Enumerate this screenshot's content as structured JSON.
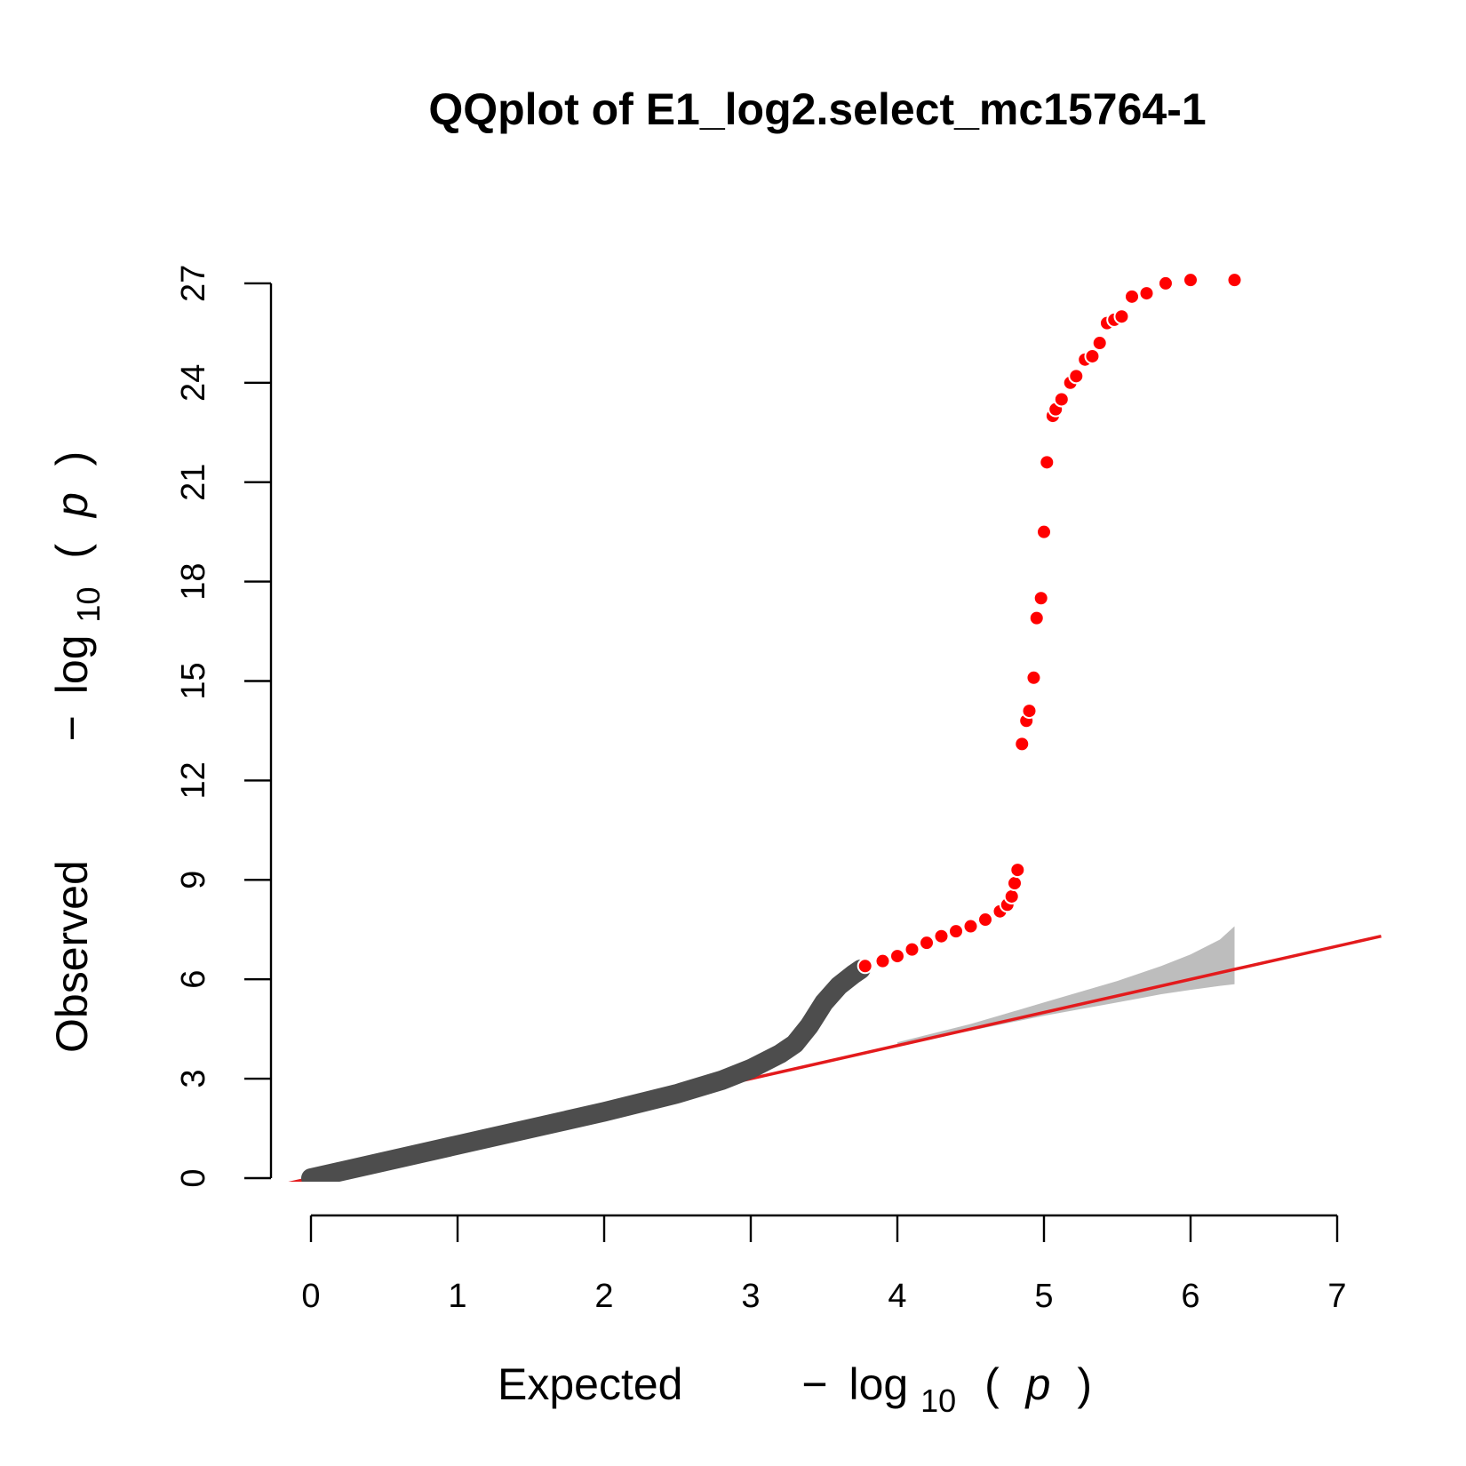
{
  "chart_data": {
    "type": "scatter",
    "title": "QQplot of E1_log2.select_mc15764-1",
    "xlabel": {
      "word": "Expected",
      "minus": "−",
      "log": "log",
      "sub": "10",
      "open": "(",
      "p": "p",
      "close": ")"
    },
    "ylabel": {
      "word": "Observed",
      "minus": "−",
      "log": "log",
      "sub": "10",
      "open": "(",
      "p": "p",
      "close": ")"
    },
    "xlim": [
      0,
      7
    ],
    "ylim": [
      0,
      27
    ],
    "x_ticks": [
      "0",
      "1",
      "2",
      "3",
      "4",
      "5",
      "6",
      "7"
    ],
    "y_ticks": [
      "0",
      "3",
      "6",
      "9",
      "12",
      "15",
      "18",
      "21",
      "24",
      "27"
    ],
    "colors": {
      "null_points": "#4d4d4d",
      "significant_points": "#ff0000",
      "expected_line": "#e31a1c",
      "confidence_band": "#bdbdbd"
    },
    "expected_line": {
      "slope": 1.0,
      "intercept": 0.0
    },
    "confidence_band": {
      "x": [
        4.0,
        4.5,
        5.0,
        5.5,
        5.8,
        6.0,
        6.2,
        6.3
      ],
      "lower": [
        4.0,
        4.45,
        4.9,
        5.3,
        5.55,
        5.68,
        5.8,
        5.85
      ],
      "upper": [
        4.1,
        4.65,
        5.3,
        5.95,
        6.4,
        6.75,
        7.2,
        7.6
      ]
    },
    "series": [
      {
        "type": "curve",
        "x": [
          0.0,
          0.5,
          1.0,
          1.5,
          2.0,
          2.5,
          2.8,
          3.0,
          3.2,
          3.3,
          3.4,
          3.5,
          3.6,
          3.7,
          3.75
        ],
        "y": [
          0.0,
          0.5,
          1.0,
          1.5,
          2.0,
          2.55,
          2.95,
          3.3,
          3.75,
          4.05,
          4.6,
          5.3,
          5.8,
          6.15,
          6.3
        ]
      },
      {
        "type": "significant",
        "x": [
          3.78,
          3.9,
          4.0,
          4.1,
          4.2,
          4.3,
          4.4,
          4.5,
          4.6,
          4.7,
          4.75,
          4.78,
          4.8,
          4.82,
          4.85,
          4.88,
          4.9,
          4.93,
          4.95,
          4.98,
          5.0,
          5.02,
          5.06,
          5.08,
          5.12,
          5.18,
          5.22,
          5.28,
          5.33,
          5.38,
          5.43,
          5.48,
          5.53,
          5.6,
          5.7,
          5.83,
          6.0,
          6.3
        ],
        "y": [
          6.4,
          6.55,
          6.7,
          6.9,
          7.1,
          7.3,
          7.45,
          7.6,
          7.8,
          8.05,
          8.25,
          8.5,
          8.9,
          9.3,
          13.1,
          13.8,
          14.1,
          15.1,
          16.9,
          17.5,
          19.5,
          21.6,
          23.0,
          23.2,
          23.5,
          24.0,
          24.2,
          24.7,
          24.8,
          25.2,
          25.8,
          25.9,
          26.0,
          26.6,
          26.7,
          27.0,
          27.1,
          27.1
        ]
      }
    ]
  }
}
